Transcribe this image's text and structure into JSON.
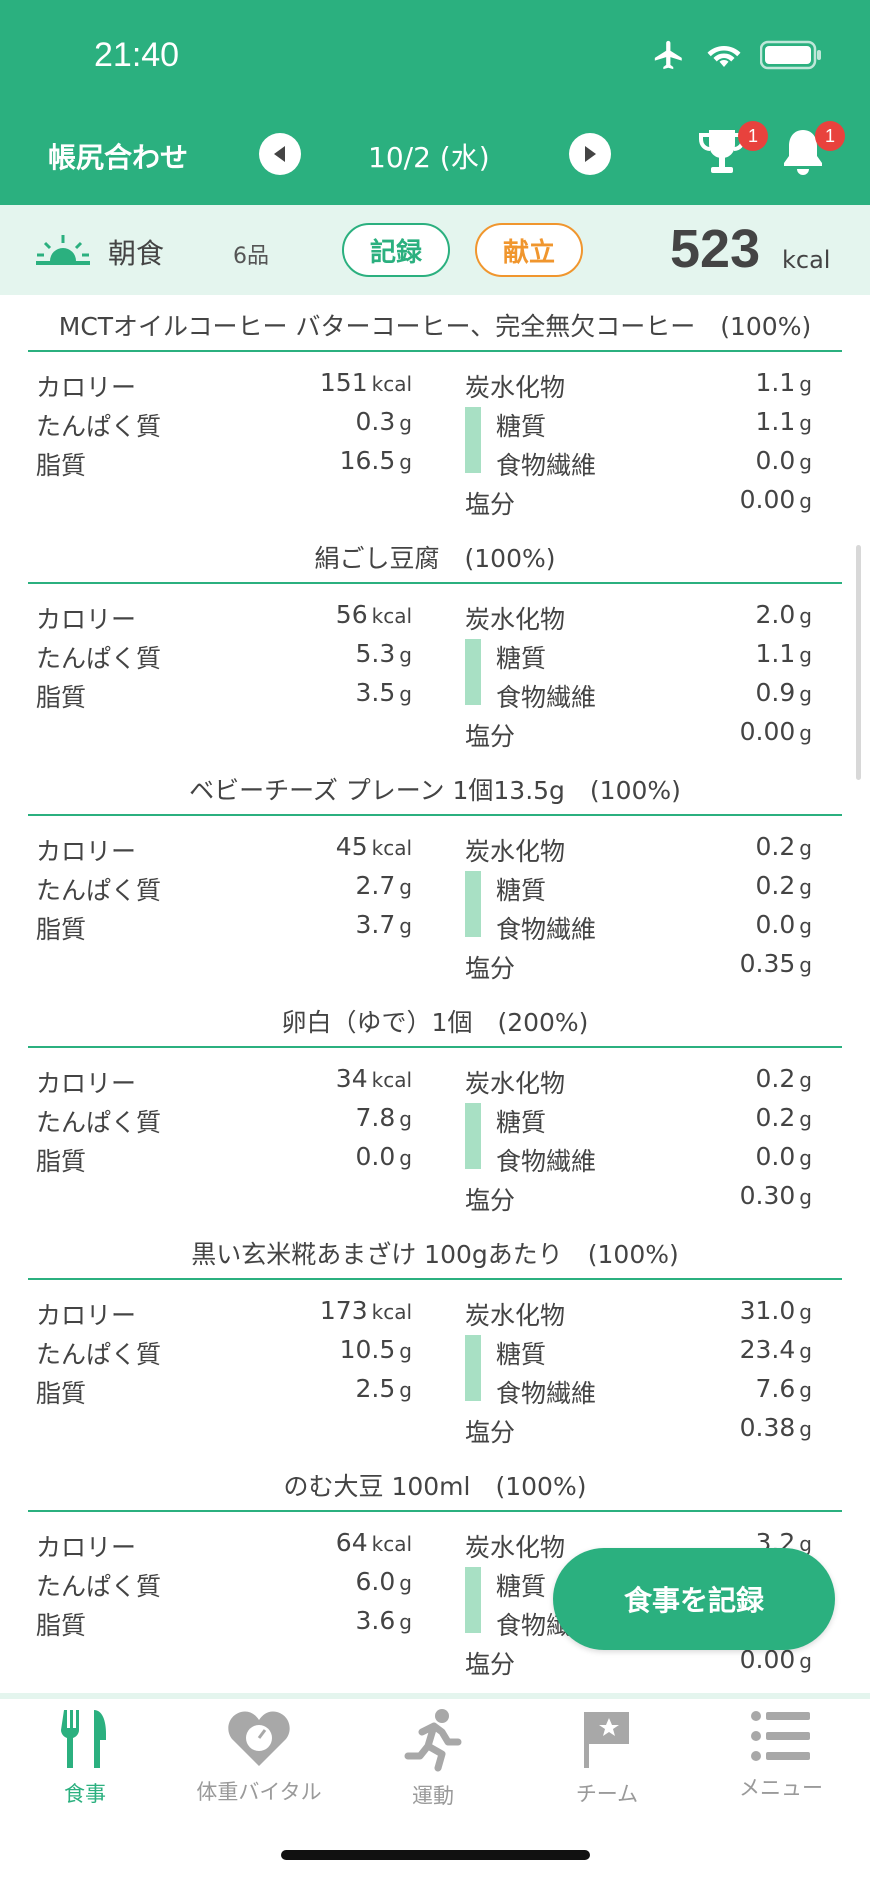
{
  "status_bar": {
    "time": "21:40"
  },
  "nav": {
    "title": "帳尻合わせ",
    "date": "10/2 (水)",
    "trophy_badge": "1",
    "bell_badge": "1"
  },
  "meal": {
    "name": "朝食",
    "count": "6品",
    "record_label": "記録",
    "plan_label": "献立",
    "total_kcal": "523",
    "total_unit": "kcal"
  },
  "labels": {
    "calorie": "カロリー",
    "protein": "たんぱく質",
    "fat": "脂質",
    "carbs": "炭水化物",
    "sugar": "糖質",
    "fiber": "食物繊維",
    "salt": "塩分",
    "kcal": "kcal",
    "g": "g"
  },
  "foods": [
    {
      "name": "MCTオイルコーヒー バターコーヒー、完全無欠コーヒー　(100%)",
      "kcal": "151",
      "protein": "0.3",
      "fat": "16.5",
      "carbs": "1.1",
      "sugar": "1.1",
      "fiber": "0.0",
      "salt": "0.00"
    },
    {
      "name": "絹ごし豆腐　(100%)",
      "kcal": "56",
      "protein": "5.3",
      "fat": "3.5",
      "carbs": "2.0",
      "sugar": "1.1",
      "fiber": "0.9",
      "salt": "0.00"
    },
    {
      "name": "ベビーチーズ プレーン 1個13.5g　(100%)",
      "kcal": "45",
      "protein": "2.7",
      "fat": "3.7",
      "carbs": "0.2",
      "sugar": "0.2",
      "fiber": "0.0",
      "salt": "0.35"
    },
    {
      "name": "卵白（ゆで）1個　(200%)",
      "kcal": "34",
      "protein": "7.8",
      "fat": "0.0",
      "carbs": "0.2",
      "sugar": "0.2",
      "fiber": "0.0",
      "salt": "0.30"
    },
    {
      "name": "黒い玄米糀あまざけ 100gあたり　(100%)",
      "kcal": "173",
      "protein": "10.5",
      "fat": "2.5",
      "carbs": "31.0",
      "sugar": "23.4",
      "fiber": "7.6",
      "salt": "0.38"
    },
    {
      "name": "のむ大豆 100ml　(100%)",
      "kcal": "64",
      "protein": "6.0",
      "fat": "3.6",
      "carbs": "3.2",
      "sugar": "",
      "fiber": "",
      "salt": "0.00"
    }
  ],
  "fab_label": "食事を記録",
  "tabs": [
    {
      "label": "食事",
      "icon": "fork-knife-icon"
    },
    {
      "label": "体重バイタル",
      "icon": "heart-scale-icon"
    },
    {
      "label": "運動",
      "icon": "runner-icon"
    },
    {
      "label": "チーム",
      "icon": "flag-icon"
    },
    {
      "label": "メニュー",
      "icon": "list-icon"
    }
  ],
  "colors": {
    "brand": "#2bb07f",
    "accent_orange": "#f0962e",
    "badge": "#e8423d",
    "light_green": "#e4f5ee"
  }
}
